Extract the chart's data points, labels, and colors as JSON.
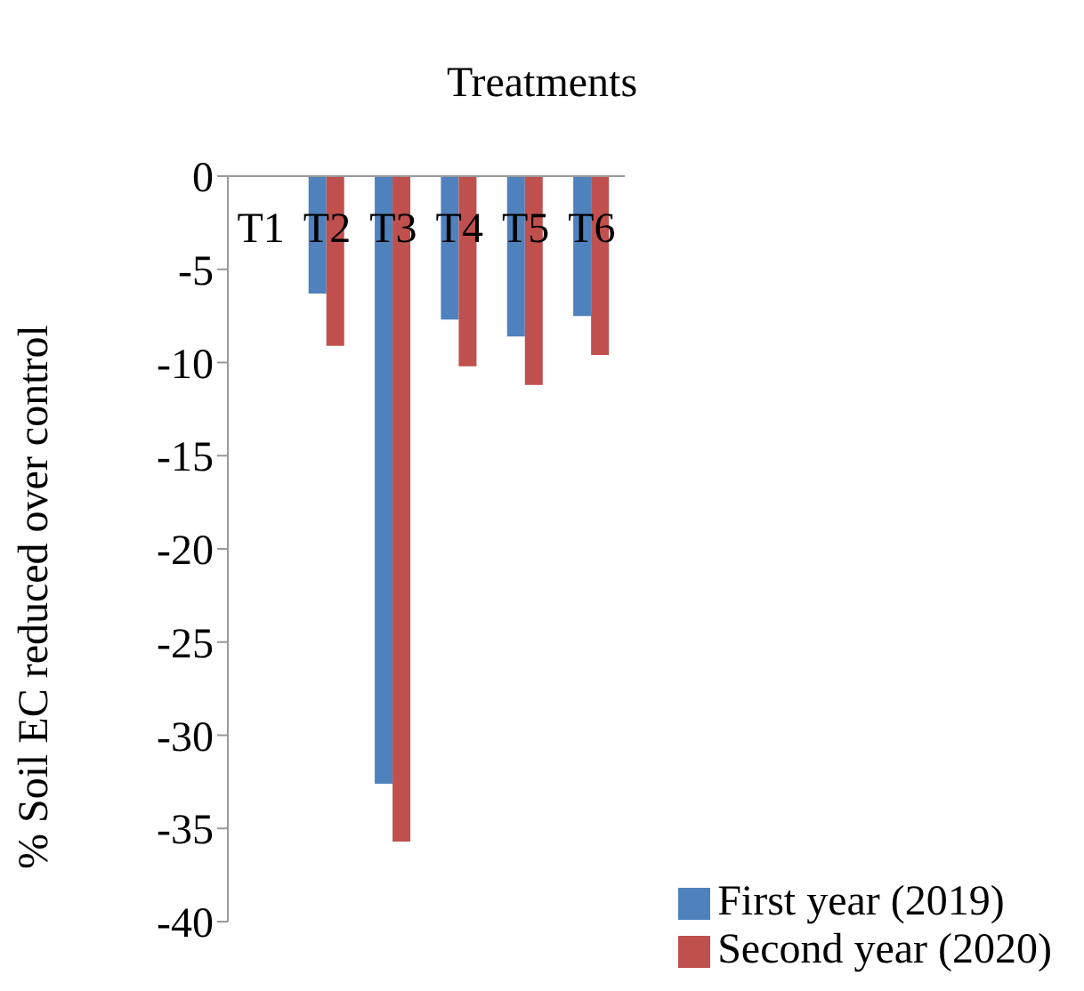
{
  "chart_data": {
    "type": "bar",
    "title": "Treatments",
    "ylabel": "% Soil EC reduced over control",
    "categories": [
      "T1",
      "T2",
      "T3",
      "T4",
      "T5",
      "T6"
    ],
    "series": [
      {
        "name": "First year (2019)",
        "color": "#4f81bd",
        "values": [
          0,
          -6.3,
          -32.6,
          -7.7,
          -8.6,
          -7.5
        ]
      },
      {
        "name": "Second year  (2020)",
        "color": "#c0504d",
        "values": [
          0,
          -9.1,
          -35.7,
          -10.2,
          -11.2,
          -9.6
        ]
      }
    ],
    "ylim": [
      -40,
      0
    ],
    "yticks": [
      0,
      -5,
      -10,
      -15,
      -20,
      -25,
      -30,
      -35,
      -40
    ],
    "legend": "bottom right"
  }
}
